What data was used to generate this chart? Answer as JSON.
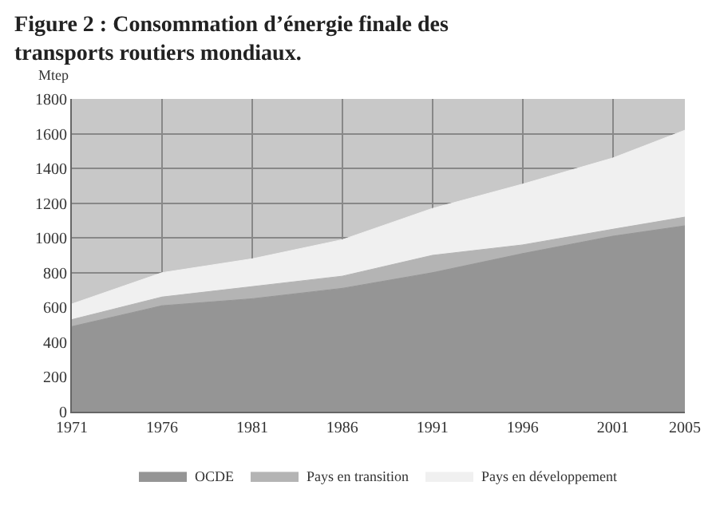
{
  "chart_data": {
    "type": "area",
    "stacked": true,
    "title": "Figure 2 : Consommation d’énergie finale des transports routiers mondiaux.",
    "ylabel": "Mtep",
    "x": [
      1971,
      1976,
      1981,
      1986,
      1991,
      1996,
      2001,
      2005
    ],
    "series": [
      {
        "name": "OCDE",
        "color": "#959595",
        "values": [
          490,
          610,
          650,
          710,
          800,
          910,
          1010,
          1070
        ]
      },
      {
        "name": "Pays en transition",
        "color": "#b4b4b4",
        "values": [
          40,
          50,
          70,
          70,
          100,
          50,
          40,
          50
        ]
      },
      {
        "name": "Pays en développement",
        "color": "#f0f0f0",
        "values": [
          90,
          140,
          160,
          210,
          270,
          350,
          410,
          500
        ]
      }
    ],
    "xlim": [
      1971,
      2005
    ],
    "xticks": [
      1971,
      1976,
      1981,
      1986,
      1991,
      1996,
      2001,
      2005
    ],
    "ylim": [
      0,
      1800
    ],
    "yticks": [
      0,
      200,
      400,
      600,
      800,
      1000,
      1200,
      1400,
      1600,
      1800
    ],
    "grid": true,
    "legend": "bottom"
  }
}
